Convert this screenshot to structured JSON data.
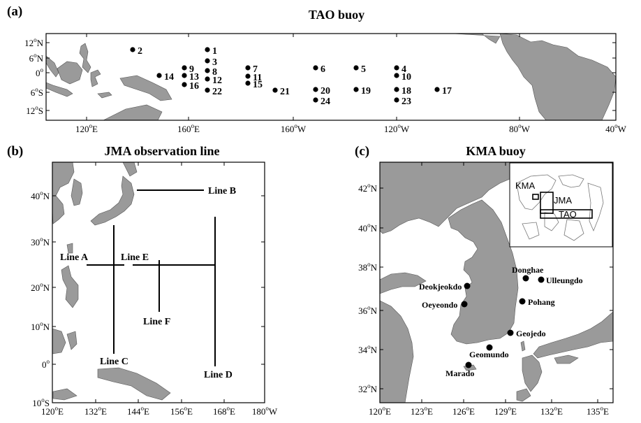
{
  "panels": {
    "a": {
      "tag": "(a)",
      "title": "TAO buoy",
      "lat_ticks": [
        {
          "deg": "12",
          "hemi": "N"
        },
        {
          "deg": "6",
          "hemi": "N"
        },
        {
          "deg": "0",
          "hemi": ""
        },
        {
          "deg": "6",
          "hemi": "S"
        },
        {
          "deg": "12",
          "hemi": "S"
        }
      ],
      "lon_ticks": [
        {
          "deg": "120",
          "hemi": "E"
        },
        {
          "deg": "160",
          "hemi": "E"
        },
        {
          "deg": "160",
          "hemi": "W"
        },
        {
          "deg": "120",
          "hemi": "W"
        },
        {
          "deg": "80",
          "hemi": "W"
        },
        {
          "deg": "40",
          "hemi": "W"
        }
      ],
      "buoys": [
        "1",
        "2",
        "3",
        "4",
        "5",
        "6",
        "7",
        "8",
        "9",
        "10",
        "11",
        "12",
        "13",
        "14",
        "15",
        "16",
        "17",
        "18",
        "19",
        "20",
        "21",
        "22",
        "23",
        "24"
      ]
    },
    "b": {
      "tag": "(b)",
      "title": "JMA observation line",
      "lat_ticks": [
        {
          "deg": "40",
          "hemi": "N"
        },
        {
          "deg": "30",
          "hemi": "N"
        },
        {
          "deg": "20",
          "hemi": "N"
        },
        {
          "deg": "10",
          "hemi": "N"
        },
        {
          "deg": "0",
          "hemi": ""
        },
        {
          "deg": "10",
          "hemi": "S"
        }
      ],
      "lon_ticks": [
        {
          "deg": "120",
          "hemi": "E"
        },
        {
          "deg": "132",
          "hemi": "E"
        },
        {
          "deg": "144",
          "hemi": "E"
        },
        {
          "deg": "156",
          "hemi": "E"
        },
        {
          "deg": "168",
          "hemi": "E"
        },
        {
          "deg": "180",
          "hemi": "W"
        }
      ],
      "lines": [
        "Line A",
        "Line B",
        "Line C",
        "Line D",
        "Line E",
        "Line F"
      ]
    },
    "c": {
      "tag": "(c)",
      "title": "KMA buoy",
      "lat_ticks": [
        {
          "deg": "42",
          "hemi": "N"
        },
        {
          "deg": "40",
          "hemi": "N"
        },
        {
          "deg": "38",
          "hemi": "N"
        },
        {
          "deg": "36",
          "hemi": "N"
        },
        {
          "deg": "34",
          "hemi": "N"
        },
        {
          "deg": "32",
          "hemi": "N"
        }
      ],
      "lon_ticks": [
        {
          "deg": "120",
          "hemi": "E"
        },
        {
          "deg": "123",
          "hemi": "E"
        },
        {
          "deg": "126",
          "hemi": "E"
        },
        {
          "deg": "129",
          "hemi": "E"
        },
        {
          "deg": "132",
          "hemi": "E"
        },
        {
          "deg": "135",
          "hemi": "E"
        }
      ],
      "stations": [
        "Donghae",
        "Ulleungdo",
        "Deokjeokdo",
        "Pohang",
        "Oeyeondo",
        "Geojedo",
        "Geomundo",
        "Marado"
      ],
      "inset_labels": [
        "KMA",
        "JMA",
        "TAO"
      ]
    }
  },
  "degree_symbol": "o",
  "colors": {
    "land": "#9a9a9a",
    "ocean": "#ffffff",
    "ink": "#000000"
  }
}
